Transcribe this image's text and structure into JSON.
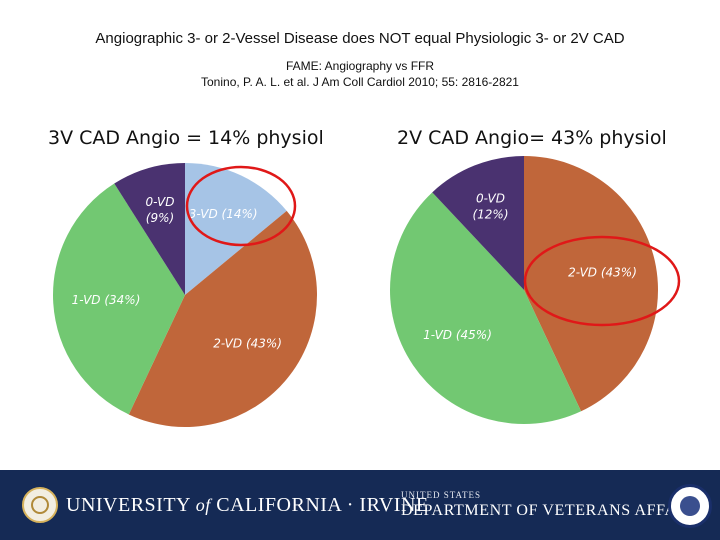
{
  "title": "Angiographic 3- or 2-Vessel Disease does NOT equal Physiologic 3- or 2V CAD",
  "subtitle_line1": "FAME: Angiography vs FFR",
  "subtitle_line2": "Tonino, P. A. L. et al. J Am Coll Cardiol 2010; 55: 2816-2821",
  "colors": {
    "0-VD": "#4a3270",
    "1-VD": "#72c872",
    "2-VD": "#c0663a",
    "3-VD": "#a6c4e6",
    "highlight": "#e01818",
    "footer_bg": "#152a55"
  },
  "chart_data": [
    {
      "type": "pie",
      "title": "3V CAD Angio = 14% physiol",
      "slices": [
        {
          "key": "3-VD",
          "name": "3-VD",
          "pct_text": "(14%)",
          "value": 14,
          "label_color": "#ffffff"
        },
        {
          "key": "2-VD",
          "name": "2-VD",
          "pct_text": "(43%)",
          "value": 43,
          "label_color": "#ffffff"
        },
        {
          "key": "1-VD",
          "name": "1-VD",
          "pct_text": "(34%)",
          "value": 34,
          "label_color": "#ffffff"
        },
        {
          "key": "0-VD",
          "name": "0-VD",
          "pct_text": "(9%)",
          "value": 9,
          "label_color": "#ffffff"
        }
      ],
      "highlighted": "3-VD"
    },
    {
      "type": "pie",
      "title": "2V CAD Angio= 43% physiol",
      "slices": [
        {
          "key": "2-VD",
          "name": "2-VD",
          "pct_text": "(43%)",
          "value": 43,
          "label_color": "#ffffff"
        },
        {
          "key": "1-VD",
          "name": "1-VD",
          "pct_text": "(45%)",
          "value": 45,
          "label_color": "#ffffff"
        },
        {
          "key": "0-VD",
          "name": "0-VD",
          "pct_text": "(12%)",
          "value": 12,
          "label_color": "#ffffff"
        }
      ],
      "highlighted": "2-VD"
    }
  ],
  "footer": {
    "uci_part1": "UNIVERSITY",
    "uci_of": "of",
    "uci_part2": "CALIFORNIA · IRVINE",
    "va_small": "UNITED STATES",
    "va_big": "DEPARTMENT OF VETERANS AFFAIRS"
  }
}
